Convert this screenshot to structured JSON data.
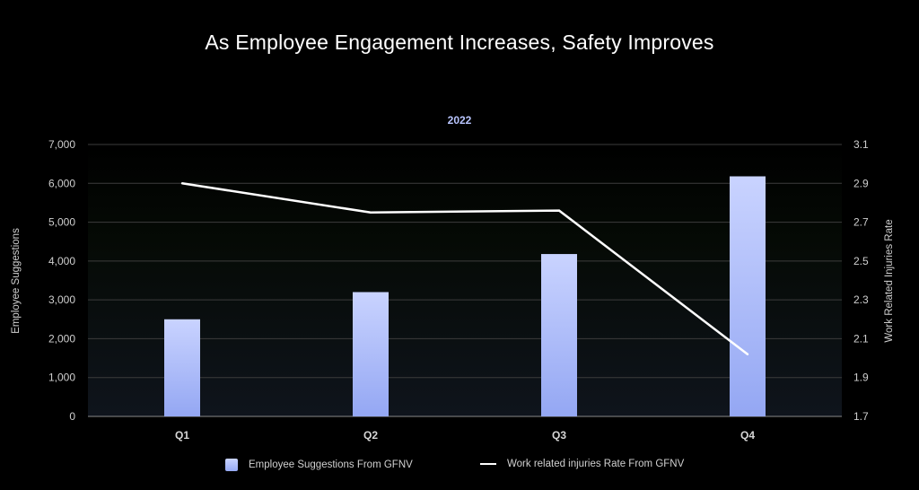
{
  "page": {
    "title": "As Employee Engagement Increases, Safety Improves"
  },
  "chart_data": {
    "type": "bar",
    "title": "2022",
    "categories": [
      "Q1",
      "Q2",
      "Q3",
      "Q4"
    ],
    "series": [
      {
        "name": "Employee Suggestions From GFNV",
        "type": "bar",
        "axis": "left",
        "values": [
          2500,
          3200,
          4180,
          6180
        ],
        "color": "#a9b9fa"
      },
      {
        "name": "Work related injuries Rate From GFNV",
        "type": "line",
        "axis": "right",
        "values": [
          2.9,
          2.75,
          2.76,
          2.02
        ],
        "color": "#ffffff"
      }
    ],
    "ylabel": "Employee Suggestions",
    "y2label": "Work Related Injuries Rate",
    "ylim": [
      0,
      7000
    ],
    "y2lim": [
      1.7,
      3.1
    ],
    "yticks": [
      "0",
      "1,000",
      "2,000",
      "3,000",
      "4,000",
      "5,000",
      "6,000",
      "7,000"
    ],
    "y2ticks": [
      "1.7",
      "1.9",
      "2.1",
      "2.3",
      "2.5",
      "2.7",
      "2.9",
      "3.1"
    ],
    "grid": true,
    "legend": "bottom"
  }
}
